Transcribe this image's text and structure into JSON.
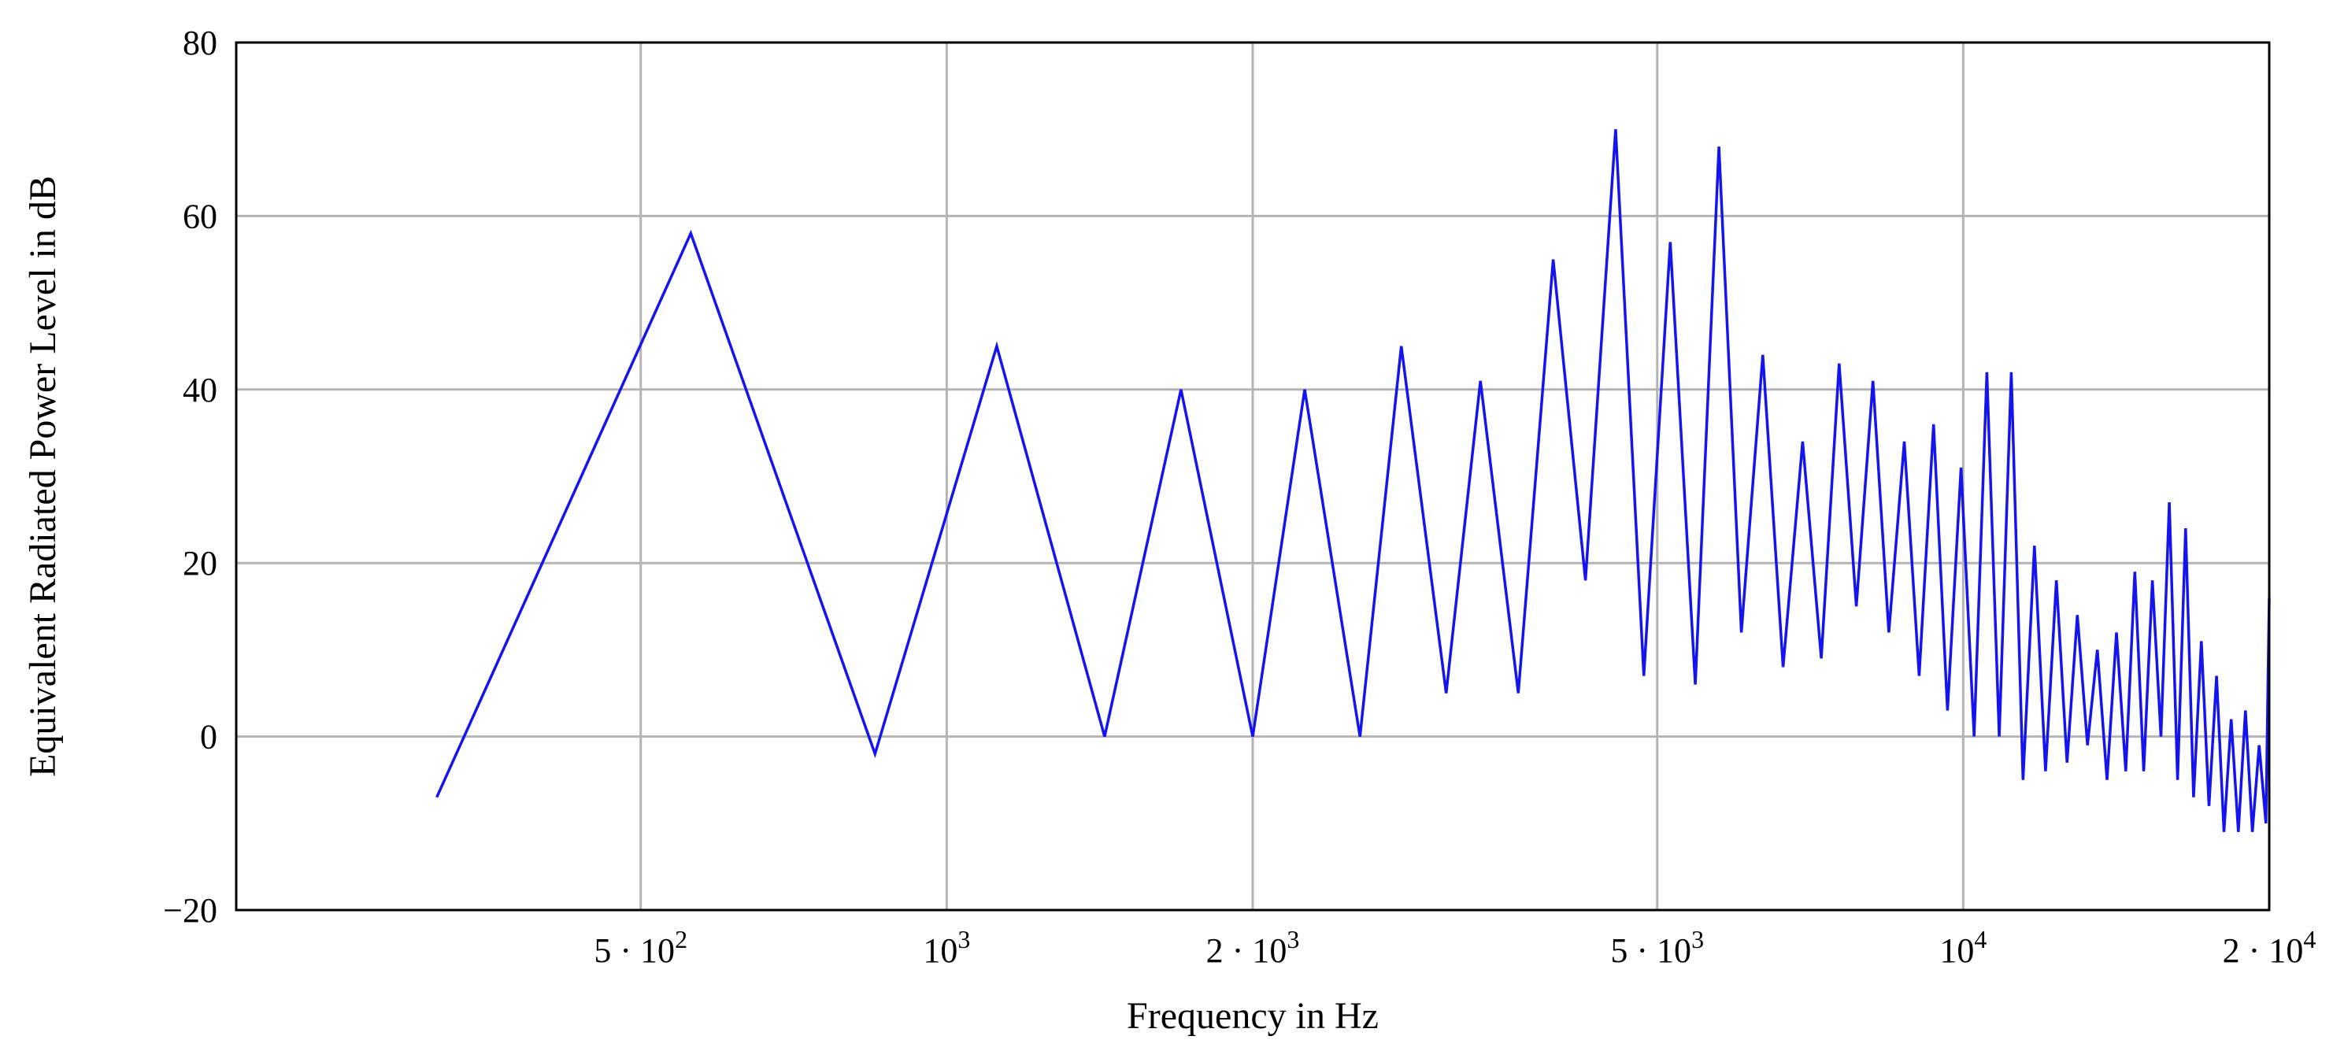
{
  "chart_data": {
    "type": "line",
    "title": "",
    "xlabel": "Frequency in Hz",
    "ylabel": "Equivalent Radiated Power Level in dB",
    "x_scale": "log",
    "xlim": [
      200,
      20000
    ],
    "ylim": [
      -20,
      80
    ],
    "grid": true,
    "legend": "none",
    "line_color": "#1414ee",
    "x_ticks": [
      {
        "value": 500,
        "base": "5 · 10",
        "exp": "2"
      },
      {
        "value": 1000,
        "base": "10",
        "exp": "3"
      },
      {
        "value": 2000,
        "base": "2 · 10",
        "exp": "3"
      },
      {
        "value": 5000,
        "base": "5 · 10",
        "exp": "3"
      },
      {
        "value": 10000,
        "base": "10",
        "exp": "4"
      },
      {
        "value": 20000,
        "base": "2 · 10",
        "exp": "4"
      }
    ],
    "y_ticks": [
      {
        "value": -20,
        "label": "−20"
      },
      {
        "value": 0,
        "label": "0"
      },
      {
        "value": 20,
        "label": "20"
      },
      {
        "value": 40,
        "label": "40"
      },
      {
        "value": 60,
        "label": "60"
      },
      {
        "value": 80,
        "label": "80"
      }
    ],
    "series": [
      {
        "x": [
          315,
          560,
          850,
          1120,
          1430,
          1700,
          2000,
          2250,
          2550,
          2800,
          3100,
          3350,
          3650,
          3950,
          4250,
          4550,
          4850,
          5150,
          5450,
          5750,
          6050,
          6350,
          6650,
          6950,
          7250,
          7550,
          7850,
          8150,
          8450,
          8750,
          9050,
          9350,
          9650,
          9950,
          10250,
          10550,
          10850,
          11150,
          11450,
          11750,
          12050,
          12350,
          12650,
          12950,
          13250,
          13550,
          13850,
          14150,
          14450,
          14750,
          15050,
          15350,
          15650,
          15950,
          16250,
          16550,
          16850,
          17150,
          17450,
          17750,
          18050,
          18350,
          18650,
          18950,
          19250,
          19550,
          19850,
          20000
        ],
        "y": [
          -7,
          58,
          -2,
          45,
          0,
          40,
          0,
          40,
          0,
          45,
          5,
          41,
          5,
          55,
          18,
          70,
          7,
          57,
          6,
          68,
          12,
          44,
          8,
          34,
          9,
          43,
          15,
          41,
          12,
          34,
          7,
          36,
          3,
          31,
          0,
          42,
          0,
          42,
          -5,
          22,
          -4,
          18,
          -3,
          14,
          -1,
          10,
          -5,
          12,
          -4,
          19,
          -4,
          18,
          0,
          27,
          -5,
          24,
          -7,
          11,
          -8,
          7,
          -11,
          2,
          -11,
          3,
          -11,
          -1,
          -10,
          16
        ]
      }
    ]
  }
}
